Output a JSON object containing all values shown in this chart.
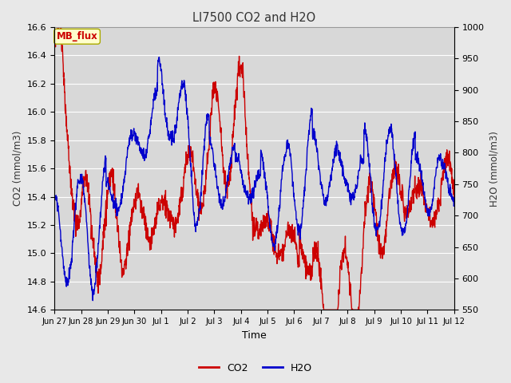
{
  "title": "LI7500 CO2 and H2O",
  "xlabel": "Time",
  "ylabel_left": "CO2 (mmol/m3)",
  "ylabel_right": "H2O (mmol/m3)",
  "ylim_left": [
    14.6,
    16.6
  ],
  "ylim_right": [
    550,
    1000
  ],
  "yticks_left": [
    14.6,
    14.8,
    15.0,
    15.2,
    15.4,
    15.6,
    15.8,
    16.0,
    16.2,
    16.4,
    16.6
  ],
  "yticks_right": [
    550,
    600,
    650,
    700,
    750,
    800,
    850,
    900,
    950,
    1000
  ],
  "xtick_labels": [
    "Jun 27",
    "Jun 28",
    "Jun 29",
    "Jun 30",
    "Jul 1",
    "Jul 2",
    "Jul 3",
    "Jul 4",
    "Jul 5",
    "Jul 6",
    "Jul 7",
    "Jul 8",
    "Jul 9",
    "Jul 10",
    "Jul 11",
    "Jul 12"
  ],
  "co2_color": "#cc0000",
  "h2o_color": "#0000cc",
  "fig_bg_color": "#e8e8e8",
  "plot_bg_color": "#d8d8d8",
  "grid_color": "#ffffff",
  "legend_box_facecolor": "#ffffcc",
  "legend_box_edgecolor": "#aaaa00",
  "annotation_text": "MB_flux",
  "annotation_color": "#cc0000",
  "linewidth": 1.0,
  "n_points": 1500
}
